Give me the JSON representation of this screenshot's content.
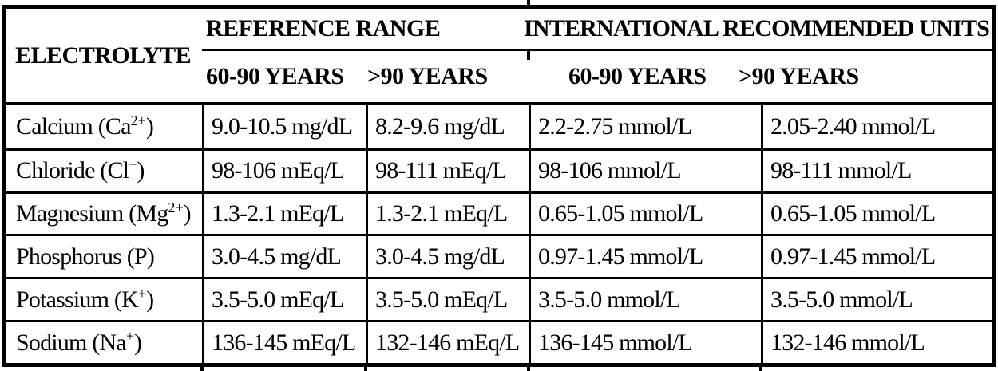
{
  "colors": {
    "background": "#ffffff",
    "border": "#000000",
    "text": "#000000"
  },
  "table": {
    "col1_header": "ELECTROLYTE",
    "groups": [
      {
        "title": "REFERENCE RANGE",
        "sub": [
          "60-90 YEARS",
          ">90 YEARS"
        ]
      },
      {
        "title": "INTERNATIONAL RECOMMENDED UNITS",
        "sub": [
          "60-90 YEARS",
          ">90 YEARS"
        ]
      }
    ],
    "rows": [
      {
        "pre": "Calcium (Ca",
        "sup": "2+",
        "post": ")",
        "ref_60_90": "9.0-10.5 mg/dL",
        "ref_gt90": "8.2-9.6 mg/dL",
        "intl_60_90": "2.2-2.75 mmol/L",
        "intl_gt90": "2.05-2.40 mmol/L"
      },
      {
        "pre": "Chloride (Cl",
        "sup": "−",
        "post": ")",
        "ref_60_90": "98-106 mEq/L",
        "ref_gt90": "98-111 mEq/L",
        "intl_60_90": "98-106 mmol/L",
        "intl_gt90": "98-111 mmol/L"
      },
      {
        "pre": "Magnesium (Mg",
        "sup": "2+",
        "post": ")",
        "ref_60_90": "1.3-2.1 mEq/L",
        "ref_gt90": "1.3-2.1 mEq/L",
        "intl_60_90": "0.65-1.05 mmol/L",
        "intl_gt90": "0.65-1.05 mmol/L"
      },
      {
        "pre": "Phosphorus (P",
        "sup": "",
        "post": ")",
        "ref_60_90": "3.0-4.5 mg/dL",
        "ref_gt90": "3.0-4.5 mg/dL",
        "intl_60_90": "0.97-1.45 mmol/L",
        "intl_gt90": "0.97-1.45 mmol/L"
      },
      {
        "pre": "Potassium (K",
        "sup": "+",
        "post": ")",
        "ref_60_90": "3.5-5.0 mEq/L",
        "ref_gt90": "3.5-5.0 mEq/L",
        "intl_60_90": "3.5-5.0 mmol/L",
        "intl_gt90": "3.5-5.0 mmol/L"
      },
      {
        "pre": "Sodium (Na",
        "sup": "+",
        "post": ")",
        "ref_60_90": "136-145 mEq/L",
        "ref_gt90": "132-146 mEq/L",
        "intl_60_90": "136-145 mmol/L",
        "intl_gt90": "132-146 mmol/L"
      }
    ]
  }
}
